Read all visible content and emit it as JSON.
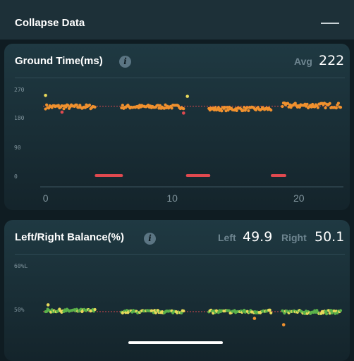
{
  "header": {
    "title": "Collapse Data",
    "collapse_icon": "minus-icon"
  },
  "ground_time": {
    "title": "Ground Time(ms)",
    "info_icon": "info-icon",
    "avg_label": "Avg",
    "avg_value": "222",
    "chart_data": {
      "type": "scatter",
      "y_ticks": [
        "270",
        "180",
        "90",
        "0"
      ],
      "ylim": [
        0,
        270
      ],
      "x_ticks": [
        "0",
        "10",
        "20"
      ],
      "xlim": [
        -0.2,
        23.3
      ],
      "reference_line": 222,
      "clusters": [
        {
          "x_start": 0.0,
          "x_end": 3.9,
          "center": 220,
          "spread": 14
        },
        {
          "x_start": 6.0,
          "x_end": 10.9,
          "center": 220,
          "spread": 12
        },
        {
          "x_start": 12.9,
          "x_end": 17.8,
          "center": 213,
          "spread": 12
        },
        {
          "x_start": 18.7,
          "x_end": 23.3,
          "center": 224,
          "spread": 16
        }
      ],
      "outliers": [
        {
          "x": 0.0,
          "y": 256,
          "color": "#e8d95a"
        },
        {
          "x": 11.2,
          "y": 253,
          "color": "#e8d95a"
        },
        {
          "x": 1.3,
          "y": 203,
          "color": "#e0494f"
        },
        {
          "x": 10.9,
          "y": 200,
          "color": "#e0494f"
        }
      ],
      "walking_segments": [
        [
          4.0,
          6.0
        ],
        [
          11.2,
          12.9
        ],
        [
          17.9,
          18.9
        ]
      ],
      "colors": {
        "points": "#f0912e",
        "walking": "#e0494f",
        "reference": "#d8484c"
      }
    }
  },
  "balance": {
    "title": "Left/Right Balance(%)",
    "info_icon": "info-icon",
    "left_label": "Left",
    "left_value": "49.9",
    "right_label": "Right",
    "right_value": "50.1",
    "chart_data": {
      "type": "scatter",
      "y_ticks": [
        "60%L",
        "50%"
      ],
      "ylim": [
        40,
        60
      ],
      "xlim": [
        -0.2,
        23.3
      ],
      "reference_line": 50,
      "clusters": [
        {
          "x_start": 0.0,
          "x_end": 3.9,
          "center": 50.2,
          "spread": 0.7
        },
        {
          "x_start": 6.0,
          "x_end": 10.9,
          "center": 50.0,
          "spread": 0.6
        },
        {
          "x_start": 12.9,
          "x_end": 17.8,
          "center": 50.0,
          "spread": 0.7
        },
        {
          "x_start": 18.7,
          "x_end": 23.3,
          "center": 49.9,
          "spread": 0.8
        }
      ],
      "outliers": [
        {
          "x": 0.2,
          "y": 51.5,
          "color": "#e8d95a"
        },
        {
          "x": 16.5,
          "y": 48.5,
          "color": "#f0912e"
        },
        {
          "x": 18.8,
          "y": 47.1,
          "color": "#f0912e"
        }
      ],
      "colors": {
        "points": "#5ab04a",
        "alt_points": "#e8d95a",
        "reference": "#d8484c"
      }
    }
  },
  "home_indicator": "home-indicator"
}
